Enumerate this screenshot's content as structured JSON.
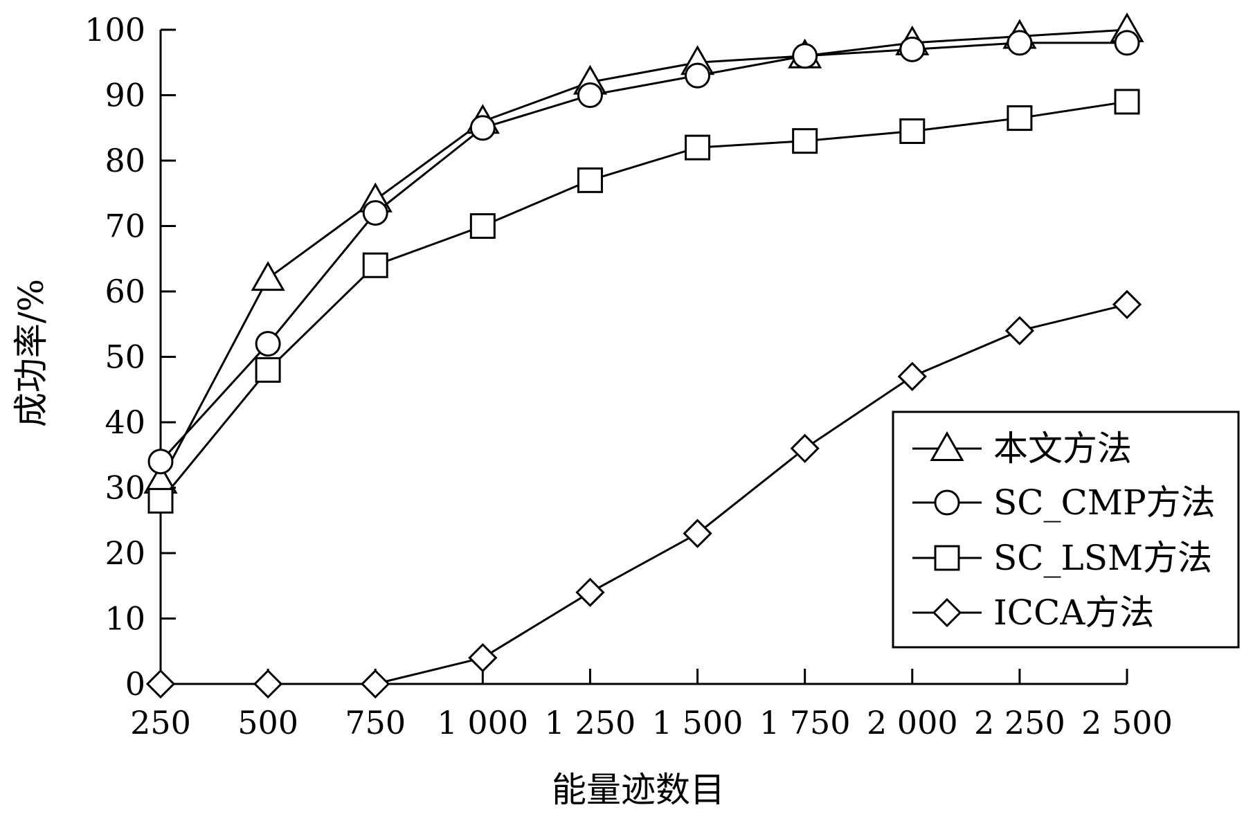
{
  "chart_data": {
    "type": "line",
    "title": "",
    "xlabel": "能量迹数目",
    "ylabel": "成功率/%",
    "x": [
      250,
      500,
      750,
      1000,
      1250,
      1500,
      1750,
      2000,
      2250,
      2500
    ],
    "x_tick_labels": [
      "250",
      "500",
      "750",
      "1 000",
      "1 250",
      "1 500",
      "1 750",
      "2 000",
      "2 250",
      "2 500"
    ],
    "ylim": [
      0,
      100
    ],
    "y_ticks": [
      0,
      10,
      20,
      30,
      40,
      50,
      60,
      70,
      80,
      90,
      100
    ],
    "grid": false,
    "legend_position": "bottom-right",
    "series": [
      {
        "name": "本文方法",
        "marker": "triangle",
        "values": [
          31,
          62,
          74,
          86,
          92,
          95,
          96,
          98,
          99,
          100
        ]
      },
      {
        "name": "SC_CMP方法",
        "marker": "circle",
        "values": [
          34,
          52,
          72,
          85,
          90,
          93,
          96,
          97,
          98,
          98
        ]
      },
      {
        "name": "SC_LSM方法",
        "marker": "square",
        "values": [
          28,
          48,
          64,
          70,
          77,
          82,
          83,
          84.5,
          86.5,
          89
        ]
      },
      {
        "name": "ICCA方法",
        "marker": "diamond",
        "values": [
          0,
          0,
          0,
          4,
          14,
          23,
          36,
          47,
          54,
          58
        ]
      }
    ]
  }
}
